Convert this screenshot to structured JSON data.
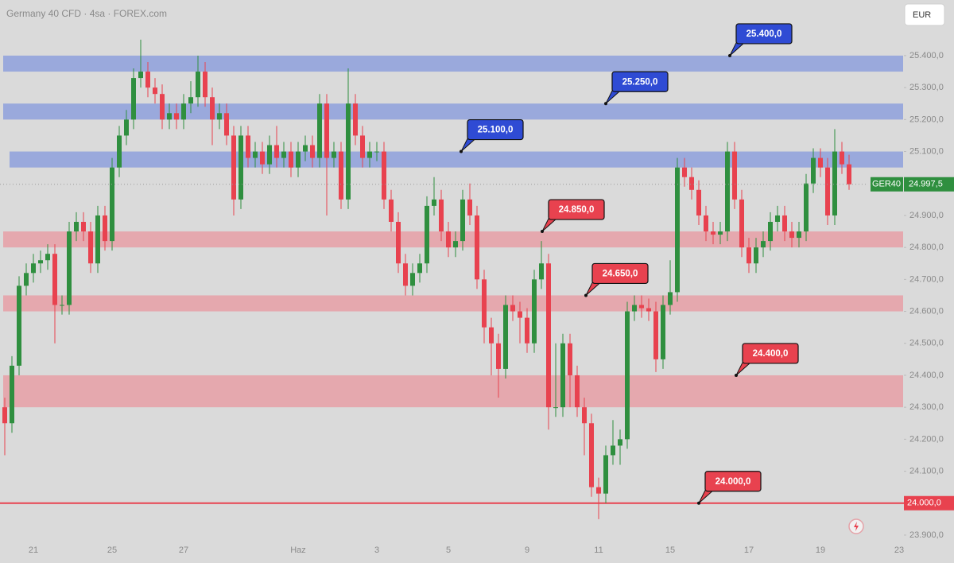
{
  "chart_data": {
    "type": "candlestick",
    "title": "Germany 40 CFD · 4sa · FOREX.com",
    "currency": "EUR",
    "symbol": "GER40",
    "up_color": "#2f8f3f",
    "down_color": "#e8424f",
    "ylim": [
      23875,
      25574
    ],
    "yticks": [
      {
        "value": 23900,
        "label": "23.900,0"
      },
      {
        "value": 24100,
        "label": "24.100,0"
      },
      {
        "value": 24200,
        "label": "24.200,0"
      },
      {
        "value": 24300,
        "label": "24.300,0"
      },
      {
        "value": 24400,
        "label": "24.400,0"
      },
      {
        "value": 24500,
        "label": "24.500,0"
      },
      {
        "value": 24600,
        "label": "24.600,0"
      },
      {
        "value": 24700,
        "label": "24.700,0"
      },
      {
        "value": 24800,
        "label": "24.800,0"
      },
      {
        "value": 24900,
        "label": "24.900,0"
      },
      {
        "value": 25100,
        "label": "25.100,0"
      },
      {
        "value": 25200,
        "label": "25.200,0"
      },
      {
        "value": 25300,
        "label": "25.300,0"
      },
      {
        "value": 25400,
        "label": "25.400,0"
      }
    ],
    "categories": [
      null,
      null,
      null,
      null,
      "21",
      null,
      null,
      null,
      null,
      null,
      null,
      null,
      null,
      null,
      null,
      "25",
      null,
      null,
      null,
      null,
      null,
      null,
      null,
      null,
      null,
      "27",
      null,
      null,
      null,
      null,
      null,
      null,
      null,
      null,
      null,
      null,
      null,
      null,
      null,
      null,
      null,
      "Haz",
      null,
      null,
      null,
      null,
      null,
      null,
      null,
      null,
      null,
      null,
      "3",
      null,
      null,
      null,
      null,
      null,
      null,
      null,
      null,
      null,
      "5",
      null,
      null,
      null,
      null,
      null,
      null,
      null,
      null,
      null,
      null,
      "9",
      null,
      null,
      null,
      null,
      null,
      null,
      null,
      null,
      null,
      "11",
      null,
      null,
      null,
      null,
      null,
      null,
      null,
      null,
      null,
      "15",
      null,
      null,
      null,
      null,
      null,
      null,
      null,
      null,
      null,
      null,
      "17",
      null,
      null,
      null,
      null,
      null,
      null,
      null,
      null,
      null,
      "19",
      null,
      null,
      null,
      null,
      null,
      null,
      null,
      null,
      null,
      null,
      "23"
    ],
    "open": [
      24300,
      24250,
      24430,
      24680,
      24720,
      24750,
      24760,
      24780,
      24620,
      24620,
      24850,
      24880,
      24850,
      24750,
      24900,
      24820,
      25050,
      25150,
      25200,
      25330,
      25350,
      25300,
      25280,
      25200,
      25220,
      25200,
      25250,
      25270,
      25350,
      25270,
      25200,
      25220,
      25150,
      24950,
      25150,
      25080,
      25100,
      25060,
      25120,
      25080,
      25100,
      25050,
      25100,
      25120,
      25080,
      25250,
      25080,
      25100,
      24950,
      25250,
      25150,
      25080,
      25100,
      25100,
      24950,
      24880,
      24750,
      24680,
      24720,
      24750,
      24930,
      24950,
      24850,
      24800,
      24820,
      24950,
      24900,
      24700,
      24550,
      24500,
      24420,
      24620,
      24600,
      24580,
      24500,
      24700,
      24750,
      24300,
      24300,
      24500,
      24400,
      24300,
      24250,
      24050,
      24030,
      24150,
      24180,
      24200,
      24600,
      24620,
      24610,
      24600,
      24450,
      24620,
      24660,
      25050,
      25020,
      24980,
      24900,
      24850,
      24840,
      24850,
      25100,
      24950,
      24800,
      24750,
      24800,
      24820,
      24880,
      24900,
      24850,
      24830,
      24850,
      25000,
      25080,
      25050,
      24900,
      25100,
      25060,
      null,
      null,
      null,
      null,
      null,
      null,
      null
    ],
    "high": [
      24330,
      24460,
      24710,
      24750,
      24780,
      24790,
      24810,
      24810,
      24650,
      24880,
      24910,
      24910,
      24880,
      24930,
      24930,
      25080,
      25180,
      25230,
      25360,
      25450,
      25380,
      25330,
      25310,
      25250,
      25250,
      25280,
      25320,
      25400,
      25380,
      25300,
      25250,
      25250,
      25180,
      25180,
      25180,
      25130,
      25130,
      25150,
      25180,
      25130,
      25130,
      25130,
      25150,
      25150,
      25280,
      25280,
      25130,
      25130,
      25360,
      25280,
      25180,
      25130,
      25130,
      25130,
      24980,
      24910,
      24780,
      24750,
      24780,
      24960,
      25020,
      24980,
      24880,
      24850,
      24980,
      25000,
      24930,
      24730,
      24580,
      24530,
      24650,
      24650,
      24630,
      24610,
      24730,
      24820,
      24780,
      24500,
      24530,
      24530,
      24430,
      24330,
      24280,
      24080,
      24180,
      24260,
      24230,
      24630,
      24650,
      24650,
      24640,
      24630,
      24650,
      24760,
      25080,
      25080,
      25050,
      25010,
      24930,
      24880,
      24880,
      25130,
      25130,
      24980,
      24830,
      24830,
      24850,
      24910,
      24930,
      24930,
      24880,
      24880,
      25030,
      25110,
      25110,
      25080,
      25170,
      25130,
      25090,
      null,
      null,
      null,
      null,
      null,
      null,
      null
    ],
    "low": [
      24150,
      24220,
      24400,
      24650,
      24690,
      24720,
      24730,
      24500,
      24590,
      24590,
      24820,
      24820,
      24720,
      24720,
      24790,
      24790,
      25020,
      25120,
      25170,
      25300,
      25270,
      25250,
      25170,
      25170,
      25170,
      25170,
      25220,
      25240,
      25240,
      25120,
      25170,
      25120,
      24900,
      24920,
      25050,
      25050,
      25030,
      25030,
      25050,
      25050,
      25020,
      25020,
      25070,
      25050,
      25050,
      24900,
      25050,
      24920,
      24920,
      25120,
      25050,
      25050,
      25070,
      24920,
      24850,
      24720,
      24650,
      24650,
      24690,
      24720,
      24900,
      24820,
      24770,
      24770,
      24790,
      24870,
      24670,
      24500,
      24400,
      24330,
      24390,
      24570,
      24500,
      24470,
      24470,
      24670,
      24230,
      24270,
      24270,
      24300,
      24270,
      24150,
      24020,
      23950,
      24000,
      24120,
      24120,
      24170,
      24570,
      24580,
      24570,
      24410,
      24420,
      24590,
      24630,
      24990,
      24950,
      24870,
      24820,
      24810,
      24810,
      24820,
      24920,
      24770,
      24720,
      24720,
      24770,
      24790,
      24850,
      24820,
      24800,
      24800,
      24820,
      24970,
      25020,
      24870,
      24870,
      25030,
      24980,
      null,
      null,
      null,
      null,
      null,
      null,
      null
    ],
    "close": [
      24250,
      24430,
      24680,
      24720,
      24750,
      24760,
      24780,
      24620,
      24620,
      24850,
      24880,
      24850,
      24750,
      24900,
      24820,
      25050,
      25150,
      25200,
      25330,
      25350,
      25300,
      25280,
      25200,
      25220,
      25200,
      25250,
      25270,
      25350,
      25270,
      25200,
      25220,
      25150,
      24950,
      25150,
      25080,
      25100,
      25060,
      25120,
      25080,
      25100,
      25050,
      25100,
      25120,
      25080,
      25250,
      25080,
      25100,
      24950,
      25250,
      25150,
      25080,
      25100,
      25100,
      24950,
      24880,
      24750,
      24680,
      24720,
      24750,
      24930,
      24950,
      24850,
      24800,
      24820,
      24950,
      24900,
      24700,
      24550,
      24500,
      24420,
      24620,
      24600,
      24580,
      24500,
      24700,
      24750,
      24300,
      24300,
      24500,
      24400,
      24300,
      24250,
      24050,
      24030,
      24150,
      24180,
      24200,
      24600,
      24620,
      24610,
      24600,
      24450,
      24620,
      24660,
      25050,
      25020,
      24980,
      24900,
      24850,
      24840,
      24850,
      25100,
      24950,
      24800,
      24750,
      24800,
      24820,
      24880,
      24900,
      24850,
      24830,
      24850,
      25000,
      25080,
      25050,
      24900,
      25100,
      25060,
      24997.5,
      null,
      null,
      null,
      null,
      null,
      null,
      null
    ],
    "last_price": {
      "value": 24997.5,
      "label": "24.997,5"
    },
    "zones": [
      {
        "top": 25400,
        "bottom": 25350,
        "label": "25.400,0",
        "fill": "#92a3db",
        "label_color": "#2f4bd4"
      },
      {
        "top": 25250,
        "bottom": 25200,
        "label": "25.250,0",
        "fill": "#92a3db",
        "label_color": "#2f4bd4"
      },
      {
        "top": 25100,
        "bottom": 25050,
        "label": "25.100,0",
        "fill": "#92a3db",
        "label_color": "#2f4bd4"
      },
      {
        "top": 24850,
        "bottom": 24800,
        "label": "24.850,0",
        "fill": "#e5a2a8",
        "label_color": "#e8424f"
      },
      {
        "top": 24650,
        "bottom": 24600,
        "label": "24.650,0",
        "fill": "#e5a2a8",
        "label_color": "#e8424f"
      },
      {
        "top": 24400,
        "bottom": 24300,
        "label": "24.400,0",
        "fill": "#e5a2a8",
        "label_color": "#e8424f"
      }
    ],
    "support_line": {
      "value": 24000,
      "label": "24.000,0",
      "color": "#e8424f"
    }
  }
}
